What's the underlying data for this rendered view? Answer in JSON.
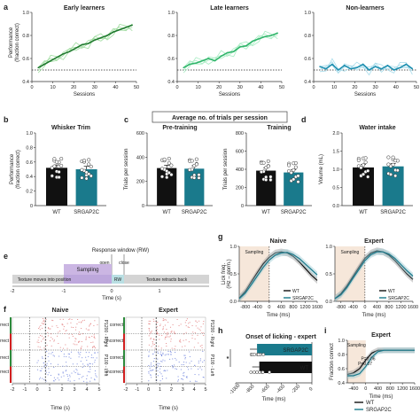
{
  "colors": {
    "wt": "#111111",
    "srgap2c": "#1a7a8c",
    "early": "#1f7a2e",
    "early_light": "#9fdc9f",
    "late": "#2fb56a",
    "late_light": "#a9ecc4",
    "non": "#1f8fb0",
    "non_light": "#a9dceb",
    "sampling": "#cbb6e3",
    "rw": "#b9dfe3",
    "shade": "#f6e7da",
    "correct": "#2e8b3d",
    "incorrect": "#d22020",
    "raster_red": "#e58a8a",
    "raster_blue": "#7d8fe0"
  },
  "panels": {
    "a": "a",
    "b": "b",
    "c": "c",
    "d": "d",
    "e": "e",
    "f": "f",
    "g": "g",
    "h": "h",
    "i": "i"
  },
  "chart_data": [
    {
      "id": "a-early",
      "type": "line",
      "title": "Early learners",
      "xlabel": "Sessions",
      "ylabel": "Performance\n(fraction correct)",
      "xlim": [
        0,
        50
      ],
      "ylim": [
        0.4,
        1.0
      ],
      "xticks": [
        "0",
        "10",
        "20",
        "30",
        "40",
        "50"
      ],
      "yticks": [
        "0.4",
        "0.6",
        "0.8",
        "1.0"
      ],
      "chance": 0.5,
      "x": [
        3,
        6,
        9,
        12,
        15,
        18,
        21,
        24,
        27,
        30,
        33,
        36,
        39,
        42,
        45,
        48
      ],
      "series": [
        {
          "values": [
            0.52,
            0.55,
            0.58,
            0.61,
            0.64,
            0.66,
            0.69,
            0.72,
            0.73,
            0.76,
            0.78,
            0.8,
            0.83,
            0.85,
            0.87,
            0.89
          ]
        }
      ]
    },
    {
      "id": "a-late",
      "type": "line",
      "title": "Late learners",
      "xlabel": "Sessions",
      "xlim": [
        0,
        50
      ],
      "ylim": [
        0.4,
        1.0
      ],
      "xticks": [
        "0",
        "10",
        "20",
        "30",
        "40",
        "50"
      ],
      "yticks": [
        "0.4",
        "0.6",
        "0.8",
        "1.0"
      ],
      "chance": 0.5,
      "x": [
        3,
        6,
        9,
        12,
        15,
        18,
        21,
        24,
        27,
        30,
        33,
        36,
        39,
        42,
        45,
        48
      ],
      "series": [
        {
          "values": [
            0.52,
            0.55,
            0.56,
            0.58,
            0.6,
            0.58,
            0.62,
            0.65,
            0.66,
            0.7,
            0.71,
            0.75,
            0.77,
            0.79,
            0.8,
            0.82
          ]
        }
      ]
    },
    {
      "id": "a-non",
      "type": "line",
      "title": "Non-learners",
      "xlabel": "Sessions",
      "xlim": [
        0,
        50
      ],
      "ylim": [
        0.4,
        1.0
      ],
      "xticks": [
        "0",
        "10",
        "20",
        "30",
        "40",
        "50"
      ],
      "yticks": [
        "0.4",
        "0.6",
        "0.8",
        "1.0"
      ],
      "chance": 0.5,
      "x": [
        3,
        6,
        9,
        12,
        15,
        18,
        21,
        24,
        27,
        30,
        33,
        36,
        39,
        42,
        45,
        48
      ],
      "series": [
        {
          "values": [
            0.53,
            0.51,
            0.55,
            0.5,
            0.54,
            0.51,
            0.52,
            0.55,
            0.5,
            0.53,
            0.51,
            0.54,
            0.5,
            0.52,
            0.55,
            0.51
          ]
        }
      ]
    },
    {
      "id": "b",
      "type": "bar",
      "title": "Whisker Trim",
      "ylabel": "Performance\n(fraction correct)",
      "categories": [
        "WT",
        "SRGAP2C"
      ],
      "values": [
        0.52,
        0.5
      ],
      "ylim": [
        0,
        1.0
      ],
      "yticks": [
        "0",
        "0.2",
        "0.4",
        "0.6",
        "0.8",
        "1.0"
      ]
    },
    {
      "id": "c-pre",
      "type": "bar",
      "title": "Pre-training",
      "ylabel": "Trials per session",
      "group_title": "Average no. of trials per session",
      "categories": [
        "WT",
        "SRGAP2C"
      ],
      "values": [
        310,
        305
      ],
      "ylim": [
        0,
        600
      ],
      "yticks": [
        "0",
        "200",
        "400",
        "600"
      ]
    },
    {
      "id": "c-train",
      "type": "bar",
      "title": "Training",
      "ylabel": "Trials per session",
      "categories": [
        "WT",
        "SRGAP2C"
      ],
      "values": [
        385,
        365
      ],
      "ylim": [
        0,
        800
      ],
      "yticks": [
        "0",
        "200",
        "400",
        "600",
        "800"
      ]
    },
    {
      "id": "d",
      "type": "bar",
      "title": "Water intake",
      "ylabel": "Volume (mL)",
      "categories": [
        "WT",
        "SRGAP2C"
      ],
      "values": [
        1.05,
        1.08
      ],
      "ylim": [
        0,
        2.0
      ],
      "yticks": [
        "0.0",
        "0.5",
        "1.0",
        "1.5",
        "2.0"
      ]
    },
    {
      "id": "g-naive",
      "type": "line",
      "title": "Naive",
      "ylabel": "Lick freq.\n(Hz – norm.)",
      "xlabel": "Time (ms)",
      "region": "Sampling",
      "xticks": [
        "-800",
        "-400",
        "0",
        "400",
        "800",
        "1200",
        "1600"
      ],
      "yticks": [
        "0.0",
        "0.5",
        "1.0"
      ],
      "xlim": [
        -1000,
        1600
      ],
      "ylim": [
        0,
        1.0
      ],
      "x": [
        -1000,
        -800,
        -600,
        -400,
        -200,
        0,
        200,
        400,
        600,
        800,
        1000,
        1200,
        1400,
        1600
      ],
      "series": [
        {
          "name": "WT",
          "values": [
            0.06,
            0.18,
            0.35,
            0.52,
            0.68,
            0.8,
            0.88,
            0.9,
            0.88,
            0.82,
            0.72,
            0.6,
            0.48,
            0.38
          ]
        },
        {
          "name": "SRGAP2C",
          "values": [
            0.05,
            0.15,
            0.3,
            0.46,
            0.62,
            0.75,
            0.84,
            0.88,
            0.89,
            0.85,
            0.78,
            0.68,
            0.58,
            0.48
          ]
        }
      ]
    },
    {
      "id": "g-expert",
      "type": "line",
      "title": "Expert",
      "xlabel": "Time (ms)",
      "region": "Sampling",
      "xticks": [
        "-800",
        "-400",
        "0",
        "400",
        "800",
        "1200",
        "1600"
      ],
      "yticks": [
        "0.0",
        "0.5",
        "1.0"
      ],
      "xlim": [
        -1000,
        1600
      ],
      "ylim": [
        0,
        1.0
      ],
      "x": [
        -1000,
        -800,
        -600,
        -400,
        -200,
        0,
        200,
        400,
        600,
        800,
        1000,
        1200,
        1400,
        1600
      ],
      "series": [
        {
          "name": "WT",
          "values": [
            0.05,
            0.14,
            0.28,
            0.45,
            0.62,
            0.78,
            0.88,
            0.92,
            0.9,
            0.84,
            0.74,
            0.62,
            0.5,
            0.4
          ]
        },
        {
          "name": "SRGAP2C",
          "values": [
            0.05,
            0.12,
            0.25,
            0.42,
            0.58,
            0.74,
            0.85,
            0.9,
            0.9,
            0.86,
            0.78,
            0.67,
            0.56,
            0.46
          ]
        }
      ]
    },
    {
      "id": "h",
      "type": "bar",
      "title": "Onset of licking - expert",
      "xlabel": "Time (ms)",
      "categories": [
        "SRGAP2C",
        "WT"
      ],
      "values": [
        -720,
        -690
      ],
      "xlim": [
        -1000,
        0
      ],
      "xticks": [
        "-1000",
        "-800",
        "-600",
        "-400",
        "-200",
        "0"
      ],
      "annotation": "*"
    },
    {
      "id": "i",
      "type": "line",
      "title": "Expert",
      "ylabel": "Fraction correct",
      "xlabel": "Time (ms)",
      "region": "Sampling",
      "annotations": [
        "P=0.06",
        "P=0.07"
      ],
      "xticks": [
        "-400",
        "0",
        "400",
        "800",
        "1200",
        "1600"
      ],
      "yticks": [
        "0.4",
        "0.6",
        "0.8",
        "1.0"
      ],
      "xlim": [
        -600,
        1600
      ],
      "ylim": [
        0.4,
        1.0
      ],
      "x": [
        -600,
        -400,
        -200,
        0,
        200,
        400,
        600,
        800,
        1000,
        1200,
        1400,
        1600
      ],
      "series": [
        {
          "name": "WT",
          "values": [
            0.52,
            0.54,
            0.6,
            0.72,
            0.82,
            0.86,
            0.86,
            0.86,
            0.86,
            0.86,
            0.86,
            0.86
          ]
        },
        {
          "name": "SRGAP2C",
          "values": [
            0.5,
            0.5,
            0.53,
            0.63,
            0.76,
            0.84,
            0.86,
            0.86,
            0.86,
            0.86,
            0.86,
            0.86
          ]
        }
      ]
    }
  ],
  "a_ylabel": "Performance\n(fraction correct)",
  "e": {
    "response_window": "Response window (RW)",
    "open": "open",
    "close": "close",
    "sampling": "Sampling",
    "texture_moves": "Texture moves into position",
    "rw": "RW",
    "texture_retracts": "Texture retracts back",
    "ticks": [
      "-2",
      "-1",
      "0",
      "1"
    ],
    "xlabel": "Time (s)"
  },
  "f": {
    "naive": "Naive",
    "expert": "Expert",
    "xlabel": "Time (s)",
    "ticks": [
      "-2",
      "-1",
      "0",
      "1",
      "2",
      "3",
      "4",
      "5"
    ],
    "rows": [
      "correct",
      "incorrect",
      "correct",
      "incorrect"
    ],
    "right_labels": [
      "P1200 - Right",
      "P100 - Left"
    ]
  }
}
